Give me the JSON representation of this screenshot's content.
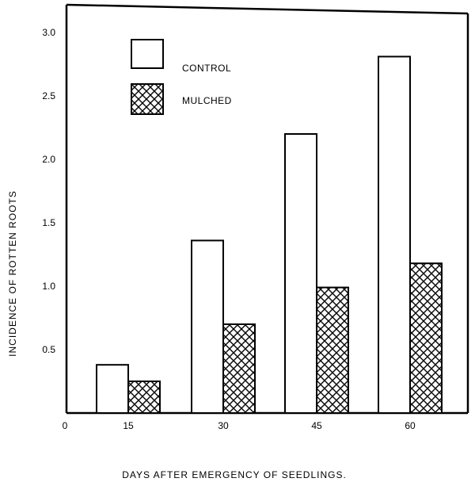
{
  "chart_data": {
    "type": "bar",
    "title": "",
    "xlabel": "DAYS  AFTER EMERGENCY OF SEEDLINGS.",
    "ylabel": "INCIDENCE OF ROTTEN ROOTS",
    "categories": [
      "15",
      "30",
      "45",
      "60"
    ],
    "x_ticks": [
      "0",
      "15",
      "30",
      "45",
      "60"
    ],
    "y_ticks": [
      "0.5",
      "1.0",
      "1.5",
      "2.0",
      "2.5",
      "3.0"
    ],
    "ylim": [
      0,
      3.2
    ],
    "series": [
      {
        "name": "CONTROL",
        "values": [
          0.38,
          1.36,
          2.2,
          2.81
        ],
        "pattern": "open"
      },
      {
        "name": "MULCHED",
        "values": [
          0.25,
          0.7,
          0.99,
          1.18
        ],
        "pattern": "crosshatch"
      }
    ],
    "legend_position": "top-left",
    "grid": false,
    "colors": {
      "ink": "#000000",
      "fill_open": "#ffffff"
    }
  }
}
